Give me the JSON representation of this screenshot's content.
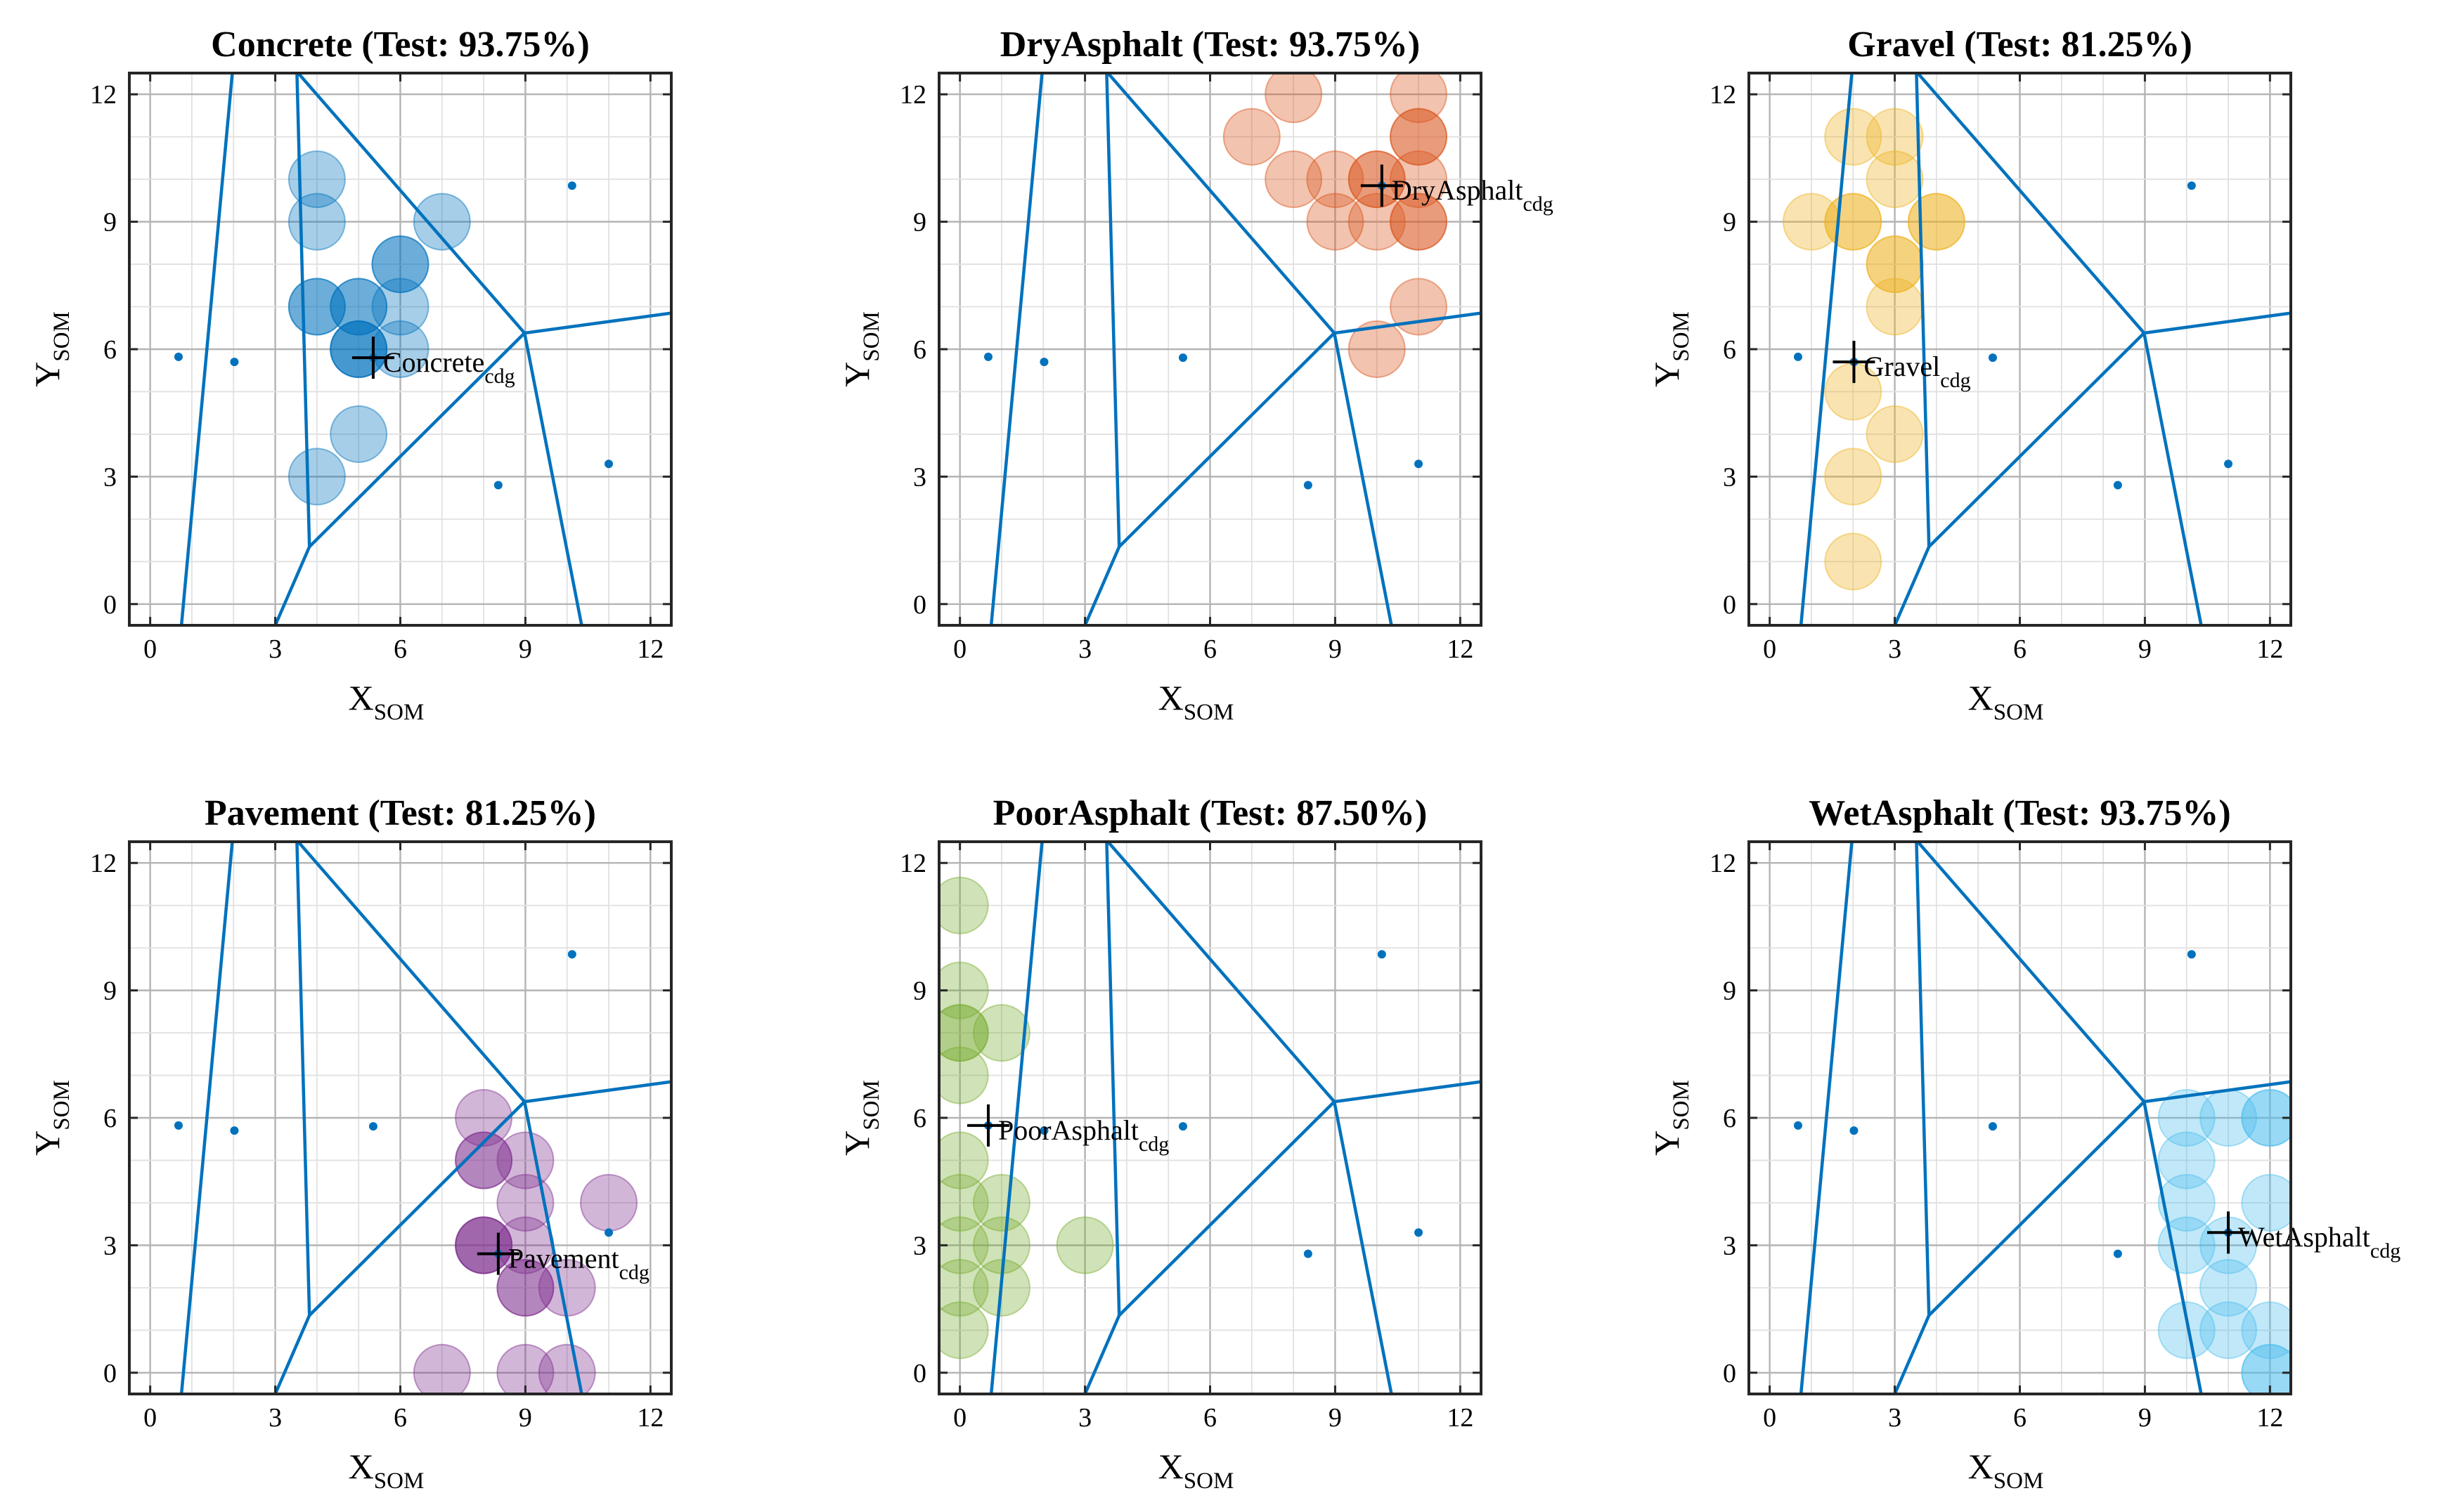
{
  "figure": {
    "type": "som_voronoi_small_multiples",
    "voronoi_color": "#0072BD"
  },
  "chart_data": {
    "type": "scatter",
    "axes": {
      "xlim": [
        -0.5,
        12.5
      ],
      "ylim": [
        -0.5,
        12.5
      ],
      "ticks": [
        0,
        3,
        6,
        9,
        12
      ],
      "minor_step": 1,
      "grid": true,
      "xlabel": "X",
      "xlabel_sub": "SOM",
      "ylabel": "Y",
      "ylabel_sub": "SOM"
    },
    "som_nodes": [
      [
        0.68,
        5.82
      ],
      [
        2.02,
        5.7
      ],
      [
        5.35,
        5.8
      ],
      [
        10.12,
        9.85
      ],
      [
        8.35,
        2.8
      ],
      [
        11.0,
        3.3
      ]
    ],
    "voronoi_edges": [
      [
        [
          0.75,
          -0.5
        ],
        [
          1.97,
          12.5
        ]
      ],
      [
        [
          3.52,
          12.5
        ],
        [
          3.82,
          1.35
        ]
      ],
      [
        [
          3.82,
          1.35
        ],
        [
          3.0,
          -0.5
        ]
      ],
      [
        [
          3.55,
          12.5
        ],
        [
          8.98,
          6.38
        ]
      ],
      [
        [
          3.82,
          1.35
        ],
        [
          8.98,
          6.38
        ]
      ],
      [
        [
          8.98,
          6.38
        ],
        [
          12.5,
          6.85
        ]
      ],
      [
        [
          8.98,
          6.38
        ],
        [
          10.35,
          -0.5
        ]
      ]
    ],
    "panels": [
      {
        "title": "Concrete (Test: 93.75%)",
        "class": "Concrete",
        "color": "#0072BD",
        "cdg_label": "Concrete",
        "cdg_sub": "cdg",
        "cdg": [
          5.35,
          5.8
        ],
        "points": [
          [
            4,
            10
          ],
          [
            4,
            9
          ],
          [
            7,
            9
          ],
          [
            6,
            8
          ],
          [
            6,
            8
          ],
          [
            4,
            7
          ],
          [
            4,
            7
          ],
          [
            5,
            7
          ],
          [
            5,
            7
          ],
          [
            6,
            7
          ],
          [
            5,
            6
          ],
          [
            5,
            6
          ],
          [
            5,
            6
          ],
          [
            6,
            6
          ],
          [
            5,
            4
          ],
          [
            4,
            3
          ]
        ]
      },
      {
        "title": "DryAsphalt (Test: 93.75%)",
        "class": "DryAsphalt",
        "color": "#D95319",
        "cdg_label": "DryAsphalt",
        "cdg_sub": "cdg",
        "cdg": [
          10.12,
          9.85
        ],
        "points": [
          [
            8,
            12
          ],
          [
            11,
            12
          ],
          [
            7,
            11
          ],
          [
            11,
            11
          ],
          [
            11,
            11
          ],
          [
            8,
            10
          ],
          [
            9,
            10
          ],
          [
            10,
            10
          ],
          [
            11,
            10
          ],
          [
            9,
            9
          ],
          [
            10,
            9
          ],
          [
            11,
            9
          ],
          [
            11,
            9
          ],
          [
            11,
            7
          ],
          [
            10,
            6
          ],
          [
            10,
            10
          ]
        ]
      },
      {
        "title": "Gravel (Test: 81.25%)",
        "class": "Gravel",
        "color": "#EDB120",
        "cdg_label": "Gravel",
        "cdg_sub": "cdg",
        "cdg": [
          2.02,
          5.7
        ],
        "points": [
          [
            2,
            11
          ],
          [
            3,
            11
          ],
          [
            3,
            10
          ],
          [
            1,
            9
          ],
          [
            2,
            9
          ],
          [
            2,
            9
          ],
          [
            4,
            9
          ],
          [
            4,
            9
          ],
          [
            3,
            8
          ],
          [
            3,
            8
          ],
          [
            3,
            7
          ],
          [
            2,
            5
          ],
          [
            3,
            4
          ],
          [
            2,
            3
          ],
          [
            2,
            1
          ]
        ]
      },
      {
        "title": "Pavement (Test: 81.25%)",
        "class": "Pavement",
        "color": "#7E2F8E",
        "cdg_label": "Pavement",
        "cdg_sub": "cdg",
        "cdg": [
          8.35,
          2.8
        ],
        "points": [
          [
            8,
            6
          ],
          [
            8,
            5
          ],
          [
            8,
            5
          ],
          [
            9,
            5
          ],
          [
            9,
            4
          ],
          [
            11,
            4
          ],
          [
            8,
            3
          ],
          [
            8,
            3
          ],
          [
            8,
            3
          ],
          [
            9,
            3
          ],
          [
            9,
            2
          ],
          [
            9,
            2
          ],
          [
            10,
            2
          ],
          [
            7,
            0
          ],
          [
            9,
            0
          ],
          [
            10,
            0
          ]
        ]
      },
      {
        "title": "PoorAsphalt (Test: 87.50%)",
        "class": "PoorAsphalt",
        "color": "#77AC30",
        "cdg_label": "PoorAsphalt",
        "cdg_sub": "cdg",
        "cdg": [
          0.68,
          5.82
        ],
        "points": [
          [
            0,
            11
          ],
          [
            0,
            9
          ],
          [
            0,
            8
          ],
          [
            0,
            8
          ],
          [
            1,
            8
          ],
          [
            0,
            7
          ],
          [
            0,
            5
          ],
          [
            0,
            4
          ],
          [
            1,
            4
          ],
          [
            0,
            3
          ],
          [
            1,
            3
          ],
          [
            3,
            3
          ],
          [
            0,
            2
          ],
          [
            1,
            2
          ],
          [
            0,
            1
          ]
        ]
      },
      {
        "title": "WetAsphalt (Test: 93.75%)",
        "class": "WetAsphalt",
        "color": "#4DBEEE",
        "cdg_label": "WetAsphalt",
        "cdg_sub": "cdg",
        "cdg": [
          11.0,
          3.3
        ],
        "points": [
          [
            10,
            6
          ],
          [
            11,
            6
          ],
          [
            12,
            6
          ],
          [
            12,
            6
          ],
          [
            10,
            5
          ],
          [
            10,
            4
          ],
          [
            12,
            4
          ],
          [
            10,
            3
          ],
          [
            11,
            3
          ],
          [
            11,
            2
          ],
          [
            10,
            1
          ],
          [
            11,
            1
          ],
          [
            12,
            1
          ],
          [
            12,
            0
          ],
          [
            12,
            0
          ]
        ]
      }
    ]
  }
}
